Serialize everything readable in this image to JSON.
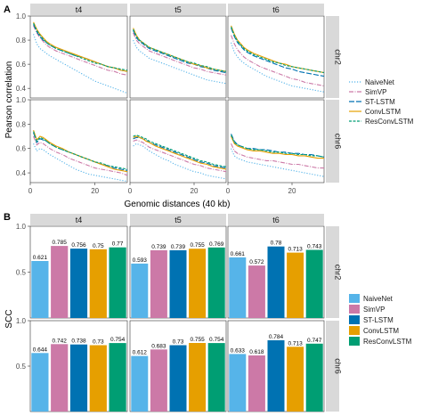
{
  "panel_labels": {
    "a": "A",
    "b": "B"
  },
  "colors": {
    "strip_bg": "#d9d9d9",
    "naivenet": "#56B4E9",
    "simvp": "#CC79A7",
    "stlstm": "#0072B2",
    "convlstm": "#E69F00",
    "resconvlstm": "#009E73"
  },
  "chart_data": [
    {
      "type": "line",
      "facet_cols": [
        "t4",
        "t5",
        "t6"
      ],
      "facet_rows": [
        "chr2",
        "chr6"
      ],
      "xlabel": "Genomic distances (40 kb)",
      "ylabel": "Pearson correlation",
      "xlim": [
        0,
        30
      ],
      "ylim": [
        0.32,
        1.0
      ],
      "xticks": [
        0,
        20
      ],
      "yticks": [
        0.4,
        0.6,
        0.8,
        1.0
      ],
      "ytick_labels": [
        "0.4",
        "0.6",
        "0.8",
        "1.0"
      ],
      "xtick_labels": [
        "0",
        "20"
      ],
      "legend_position": "right",
      "x": [
        1,
        2,
        3,
        4,
        5,
        6,
        8,
        10,
        12,
        14,
        16,
        18,
        20,
        22,
        24,
        26,
        28,
        30
      ],
      "series": [
        {
          "name": "NaiveNet",
          "key": "naivenet"
        },
        {
          "name": "SimVP",
          "key": "simvp"
        },
        {
          "name": "ST-LSTM",
          "key": "stlstm"
        },
        {
          "name": "ConvLSTM",
          "key": "convlstm"
        },
        {
          "name": "ResConvLSTM",
          "key": "resconvlstm"
        }
      ],
      "panels": [
        {
          "col": "t4",
          "row": "chr2",
          "series": {
            "naivenet": [
              0.85,
              0.77,
              0.73,
              0.71,
              0.69,
              0.67,
              0.64,
              0.61,
              0.58,
              0.55,
              0.52,
              0.49,
              0.46,
              0.44,
              0.42,
              0.4,
              0.38,
              0.36
            ],
            "simvp": [
              0.92,
              0.86,
              0.82,
              0.79,
              0.76,
              0.74,
              0.71,
              0.69,
              0.67,
              0.65,
              0.63,
              0.61,
              0.59,
              0.57,
              0.55,
              0.54,
              0.52,
              0.51
            ],
            "stlstm": [
              0.93,
              0.87,
              0.83,
              0.8,
              0.78,
              0.76,
              0.73,
              0.71,
              0.69,
              0.67,
              0.66,
              0.64,
              0.62,
              0.6,
              0.58,
              0.57,
              0.55,
              0.54
            ],
            "convlstm": [
              0.95,
              0.89,
              0.85,
              0.82,
              0.79,
              0.77,
              0.74,
              0.72,
              0.7,
              0.68,
              0.66,
              0.64,
              0.62,
              0.6,
              0.58,
              0.57,
              0.55,
              0.54
            ],
            "resconvlstm": [
              0.94,
              0.88,
              0.84,
              0.81,
              0.78,
              0.76,
              0.73,
              0.71,
              0.69,
              0.67,
              0.65,
              0.63,
              0.61,
              0.6,
              0.58,
              0.57,
              0.56,
              0.55
            ]
          }
        },
        {
          "col": "t5",
          "row": "chr2",
          "series": {
            "naivenet": [
              0.8,
              0.74,
              0.71,
              0.69,
              0.67,
              0.65,
              0.63,
              0.61,
              0.59,
              0.57,
              0.55,
              0.53,
              0.51,
              0.49,
              0.47,
              0.46,
              0.45,
              0.44
            ],
            "simvp": [
              0.86,
              0.8,
              0.77,
              0.75,
              0.73,
              0.71,
              0.69,
              0.67,
              0.65,
              0.63,
              0.61,
              0.59,
              0.57,
              0.56,
              0.54,
              0.53,
              0.52,
              0.51
            ],
            "stlstm": [
              0.88,
              0.82,
              0.79,
              0.77,
              0.75,
              0.73,
              0.71,
              0.69,
              0.67,
              0.65,
              0.63,
              0.61,
              0.6,
              0.58,
              0.57,
              0.55,
              0.54,
              0.53
            ],
            "convlstm": [
              0.9,
              0.84,
              0.8,
              0.78,
              0.76,
              0.74,
              0.72,
              0.7,
              0.68,
              0.66,
              0.64,
              0.62,
              0.6,
              0.59,
              0.57,
              0.56,
              0.55,
              0.54
            ],
            "resconvlstm": [
              0.89,
              0.83,
              0.8,
              0.78,
              0.76,
              0.74,
              0.72,
              0.7,
              0.68,
              0.66,
              0.64,
              0.62,
              0.61,
              0.59,
              0.58,
              0.56,
              0.55,
              0.54
            ]
          }
        },
        {
          "col": "t6",
          "row": "chr2",
          "series": {
            "naivenet": [
              0.78,
              0.7,
              0.66,
              0.63,
              0.61,
              0.59,
              0.56,
              0.53,
              0.5,
              0.48,
              0.46,
              0.44,
              0.42,
              0.41,
              0.4,
              0.39,
              0.38,
              0.37
            ],
            "simvp": [
              0.84,
              0.77,
              0.72,
              0.69,
              0.66,
              0.64,
              0.61,
              0.58,
              0.56,
              0.54,
              0.52,
              0.5,
              0.48,
              0.47,
              0.45,
              0.44,
              0.43,
              0.42
            ],
            "stlstm": [
              0.9,
              0.83,
              0.78,
              0.75,
              0.72,
              0.7,
              0.67,
              0.65,
              0.63,
              0.61,
              0.59,
              0.57,
              0.56,
              0.54,
              0.53,
              0.52,
              0.51,
              0.5
            ],
            "convlstm": [
              0.92,
              0.85,
              0.8,
              0.77,
              0.74,
              0.72,
              0.69,
              0.67,
              0.65,
              0.63,
              0.61,
              0.6,
              0.58,
              0.57,
              0.56,
              0.55,
              0.54,
              0.53
            ],
            "resconvlstm": [
              0.91,
              0.84,
              0.79,
              0.76,
              0.73,
              0.71,
              0.68,
              0.66,
              0.64,
              0.62,
              0.61,
              0.59,
              0.58,
              0.57,
              0.56,
              0.55,
              0.54,
              0.53
            ]
          }
        },
        {
          "col": "t4",
          "row": "chr6",
          "series": {
            "naivenet": [
              0.64,
              0.58,
              0.6,
              0.59,
              0.57,
              0.55,
              0.52,
              0.49,
              0.46,
              0.43,
              0.41,
              0.39,
              0.38,
              0.37,
              0.36,
              0.35,
              0.34,
              0.33
            ],
            "simvp": [
              0.7,
              0.63,
              0.65,
              0.64,
              0.62,
              0.6,
              0.57,
              0.55,
              0.52,
              0.5,
              0.48,
              0.46,
              0.44,
              0.43,
              0.42,
              0.41,
              0.4,
              0.38
            ],
            "stlstm": [
              0.73,
              0.65,
              0.68,
              0.67,
              0.66,
              0.64,
              0.61,
              0.59,
              0.57,
              0.55,
              0.53,
              0.51,
              0.49,
              0.47,
              0.46,
              0.44,
              0.43,
              0.42
            ],
            "convlstm": [
              0.75,
              0.67,
              0.7,
              0.69,
              0.67,
              0.65,
              0.62,
              0.6,
              0.57,
              0.55,
              0.53,
              0.51,
              0.49,
              0.47,
              0.45,
              0.43,
              0.42,
              0.41
            ],
            "resconvlstm": [
              0.74,
              0.66,
              0.69,
              0.68,
              0.66,
              0.64,
              0.61,
              0.59,
              0.57,
              0.55,
              0.53,
              0.51,
              0.49,
              0.48,
              0.46,
              0.45,
              0.44,
              0.43
            ]
          }
        },
        {
          "col": "t5",
          "row": "chr6",
          "series": {
            "naivenet": [
              0.62,
              0.64,
              0.63,
              0.62,
              0.6,
              0.58,
              0.55,
              0.52,
              0.5,
              0.47,
              0.45,
              0.43,
              0.41,
              0.4,
              0.38,
              0.37,
              0.36,
              0.35
            ],
            "simvp": [
              0.66,
              0.67,
              0.66,
              0.65,
              0.63,
              0.61,
              0.59,
              0.57,
              0.55,
              0.53,
              0.51,
              0.49,
              0.47,
              0.46,
              0.44,
              0.43,
              0.42,
              0.41
            ],
            "stlstm": [
              0.68,
              0.69,
              0.69,
              0.68,
              0.67,
              0.65,
              0.63,
              0.61,
              0.59,
              0.57,
              0.55,
              0.53,
              0.51,
              0.49,
              0.48,
              0.46,
              0.45,
              0.44
            ],
            "convlstm": [
              0.69,
              0.7,
              0.69,
              0.68,
              0.66,
              0.65,
              0.62,
              0.6,
              0.58,
              0.56,
              0.54,
              0.52,
              0.5,
              0.48,
              0.47,
              0.45,
              0.44,
              0.43
            ],
            "resconvlstm": [
              0.7,
              0.71,
              0.7,
              0.69,
              0.68,
              0.66,
              0.64,
              0.62,
              0.6,
              0.58,
              0.56,
              0.54,
              0.52,
              0.5,
              0.49,
              0.47,
              0.46,
              0.45
            ]
          }
        },
        {
          "col": "t6",
          "row": "chr6",
          "series": {
            "naivenet": [
              0.6,
              0.54,
              0.52,
              0.51,
              0.5,
              0.49,
              0.48,
              0.47,
              0.46,
              0.45,
              0.44,
              0.43,
              0.42,
              0.41,
              0.4,
              0.39,
              0.38,
              0.37
            ],
            "simvp": [
              0.64,
              0.58,
              0.56,
              0.55,
              0.54,
              0.53,
              0.52,
              0.51,
              0.5,
              0.5,
              0.49,
              0.48,
              0.47,
              0.47,
              0.46,
              0.45,
              0.44,
              0.44
            ],
            "stlstm": [
              0.72,
              0.66,
              0.63,
              0.62,
              0.61,
              0.6,
              0.6,
              0.59,
              0.59,
              0.58,
              0.57,
              0.57,
              0.56,
              0.56,
              0.55,
              0.55,
              0.54,
              0.53
            ],
            "convlstm": [
              0.7,
              0.64,
              0.62,
              0.61,
              0.6,
              0.59,
              0.58,
              0.58,
              0.57,
              0.56,
              0.56,
              0.55,
              0.55,
              0.54,
              0.54,
              0.53,
              0.52,
              0.52
            ],
            "resconvlstm": [
              0.71,
              0.65,
              0.63,
              0.62,
              0.61,
              0.6,
              0.59,
              0.59,
              0.58,
              0.57,
              0.57,
              0.56,
              0.56,
              0.55,
              0.55,
              0.54,
              0.54,
              0.53
            ]
          }
        }
      ]
    },
    {
      "type": "bar",
      "facet_cols": [
        "t4",
        "t5",
        "t6"
      ],
      "facet_rows": [
        "chr2",
        "chr6"
      ],
      "ylabel": "SCC",
      "xlabel": "",
      "ylim": [
        0,
        1.0
      ],
      "yticks": [
        0.5,
        1.0
      ],
      "ytick_labels": [
        "0.5",
        "1.0"
      ],
      "legend_position": "right",
      "categories": [
        "NaiveNet",
        "SimVP",
        "ST-LSTM",
        "ConvLSTM",
        "ResConvLSTM"
      ],
      "panels": [
        {
          "col": "t4",
          "row": "chr2",
          "values": [
            0.621,
            0.785,
            0.756,
            0.75,
            0.77
          ],
          "labels": [
            "0.621",
            "0.785",
            "0.756",
            "0.75",
            "0.77"
          ]
        },
        {
          "col": "t5",
          "row": "chr2",
          "values": [
            0.593,
            0.739,
            0.739,
            0.755,
            0.769
          ],
          "labels": [
            "0.593",
            "0.739",
            "0.739",
            "0.755",
            "0.769"
          ]
        },
        {
          "col": "t6",
          "row": "chr2",
          "values": [
            0.661,
            0.572,
            0.78,
            0.713,
            0.743
          ],
          "labels": [
            "0.661",
            "0.572",
            "0.78",
            "0.713",
            "0.743"
          ]
        },
        {
          "col": "t4",
          "row": "chr6",
          "values": [
            0.644,
            0.742,
            0.738,
            0.73,
            0.754
          ],
          "labels": [
            "0.644",
            "0.742",
            "0.738",
            "0.73",
            "0.754"
          ]
        },
        {
          "col": "t5",
          "row": "chr6",
          "values": [
            0.612,
            0.683,
            0.73,
            0.755,
            0.754
          ],
          "labels": [
            "0.612",
            "0.683",
            "0.73",
            "0.755",
            "0.754"
          ]
        },
        {
          "col": "t6",
          "row": "chr6",
          "values": [
            0.633,
            0.618,
            0.784,
            0.713,
            0.747
          ],
          "labels": [
            "0.633",
            "0.618",
            "0.784",
            "0.713",
            "0.747"
          ]
        }
      ]
    }
  ]
}
